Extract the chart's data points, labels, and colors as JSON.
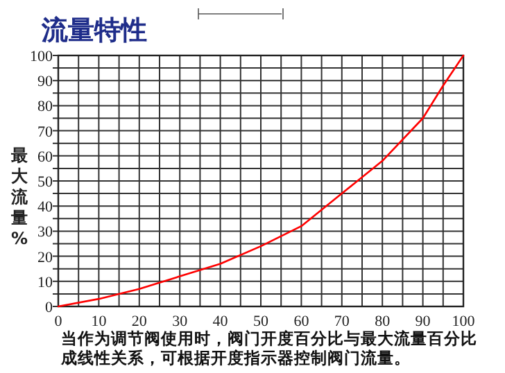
{
  "chart_data": {
    "type": "line",
    "title": "流量特性",
    "ylabel": "最大流量%",
    "annotations": [
      "当作为调节阀使用时，阀门开度百分比与最大流量百分比",
      "成线性关系，可根据开度指示器控制阀门流量。"
    ],
    "x": [
      0,
      10,
      20,
      30,
      40,
      50,
      60,
      70,
      80,
      90,
      95,
      100
    ],
    "series": [
      {
        "color": "#ff0000",
        "values": [
          0,
          3,
          7,
          12,
          17,
          24,
          32,
          45,
          58,
          75,
          88,
          100
        ]
      }
    ],
    "xlim": [
      0,
      100
    ],
    "ylim": [
      0,
      100
    ],
    "xticks": [
      0,
      {
        "value": 5,
        "label": null
      },
      10,
      {
        "value": 15,
        "label": null
      },
      20,
      {
        "value": 25,
        "label": null
      },
      30,
      {
        "value": 35,
        "label": null
      },
      40,
      {
        "value": 45,
        "label": null
      },
      50,
      {
        "value": 55,
        "label": null
      },
      60,
      {
        "value": 65,
        "label": null
      },
      70,
      {
        "value": 75,
        "label": null
      },
      80,
      {
        "value": 85,
        "label": null
      },
      90,
      {
        "value": 95,
        "label": null
      },
      100
    ],
    "yticks": [
      0,
      {
        "value": 5,
        "label": null
      },
      10,
      {
        "value": 15,
        "label": null
      },
      20,
      {
        "value": 25,
        "label": null
      },
      30,
      {
        "value": 35,
        "label": null
      },
      40,
      {
        "value": 45,
        "label": null
      },
      50,
      {
        "value": 55,
        "label": null
      },
      60,
      {
        "value": 65,
        "label": null
      },
      70,
      {
        "value": 75,
        "label": null
      },
      80,
      {
        "value": 85,
        "label": null
      },
      90,
      {
        "value": 95,
        "label": null
      },
      100
    ],
    "grid": true,
    "marker": "none",
    "line_style": "solid"
  }
}
